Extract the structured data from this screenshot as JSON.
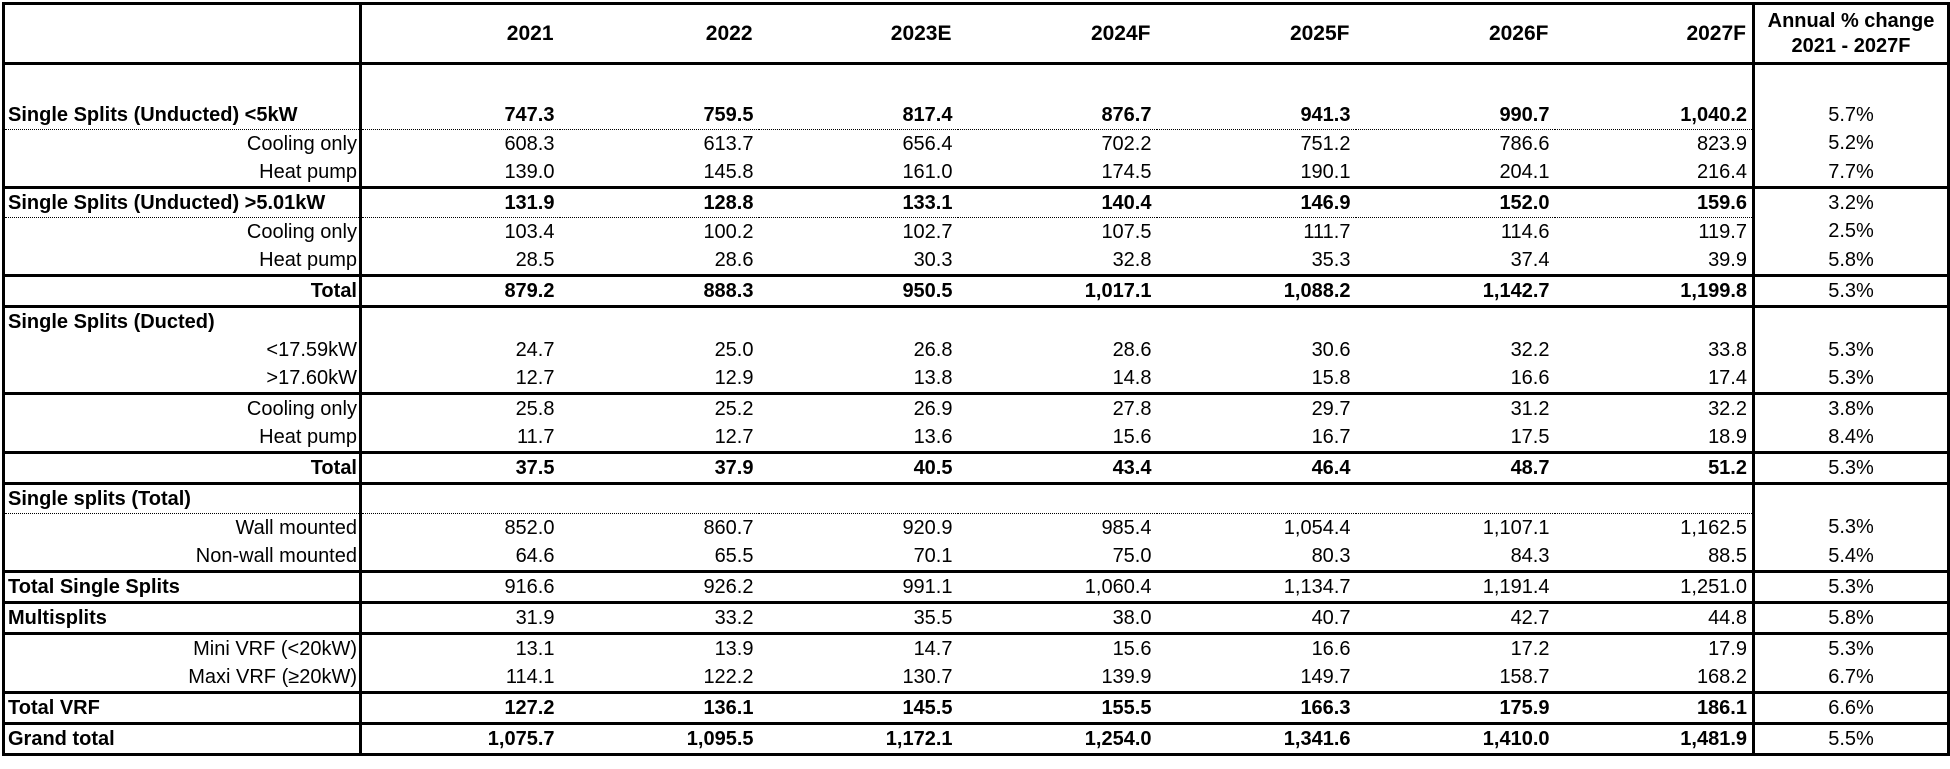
{
  "colors": {
    "background": "#ffffff",
    "text": "#000000",
    "border": "#000000"
  },
  "chart_data": {
    "type": "table",
    "year_columns": [
      "2021",
      "2022",
      "2023E",
      "2024F",
      "2025F",
      "2026F",
      "2027F"
    ],
    "change_column": {
      "line1": "Annual % change",
      "line2": "2021 - 2027F"
    },
    "corner_label": "",
    "rows": [
      {
        "label": "",
        "blank": true,
        "label_align": "left",
        "bold_label": false,
        "bold_values": false,
        "bottom_border": "none",
        "values": [
          "",
          "",
          "",
          "",
          "",
          "",
          ""
        ],
        "change": ""
      },
      {
        "label": "Single Splits (Unducted) <5kW",
        "label_align": "left",
        "bold_label": true,
        "bold_values": true,
        "bottom_border": "dotted",
        "values": [
          "747.3",
          "759.5",
          "817.4",
          "876.7",
          "941.3",
          "990.7",
          "1,040.2"
        ],
        "change": "5.7%"
      },
      {
        "label": "Cooling only",
        "label_align": "right",
        "bold_label": false,
        "bold_values": false,
        "bottom_border": "none",
        "values": [
          "608.3",
          "613.7",
          "656.4",
          "702.2",
          "751.2",
          "786.6",
          "823.9"
        ],
        "change": "5.2%"
      },
      {
        "label": "Heat pump",
        "label_align": "right",
        "bold_label": false,
        "bold_values": false,
        "bottom_border": "thick",
        "values": [
          "139.0",
          "145.8",
          "161.0",
          "174.5",
          "190.1",
          "204.1",
          "216.4"
        ],
        "change": "7.7%"
      },
      {
        "label": "Single Splits (Unducted) >5.01kW",
        "label_align": "left",
        "bold_label": true,
        "bold_values": true,
        "bottom_border": "dotted",
        "values": [
          "131.9",
          "128.8",
          "133.1",
          "140.4",
          "146.9",
          "152.0",
          "159.6"
        ],
        "change": "3.2%"
      },
      {
        "label": "Cooling only",
        "label_align": "right",
        "bold_label": false,
        "bold_values": false,
        "bottom_border": "none",
        "values": [
          "103.4",
          "100.2",
          "102.7",
          "107.5",
          "111.7",
          "114.6",
          "119.7"
        ],
        "change": "2.5%"
      },
      {
        "label": "Heat pump",
        "label_align": "right",
        "bold_label": false,
        "bold_values": false,
        "bottom_border": "thick",
        "values": [
          "28.5",
          "28.6",
          "30.3",
          "32.8",
          "35.3",
          "37.4",
          "39.9"
        ],
        "change": "5.8%"
      },
      {
        "label": "Total",
        "label_align": "right",
        "bold_label": true,
        "bold_values": true,
        "bottom_border": "thick",
        "values": [
          "879.2",
          "888.3",
          "950.5",
          "1,017.1",
          "1,088.2",
          "1,142.7",
          "1,199.8"
        ],
        "change": "5.3%"
      },
      {
        "label": "Single Splits (Ducted)",
        "label_align": "left",
        "bold_label": true,
        "bold_values": false,
        "bottom_border": "none",
        "values": [
          "",
          "",
          "",
          "",
          "",
          "",
          ""
        ],
        "change": ""
      },
      {
        "label": "<17.59kW",
        "label_align": "right",
        "bold_label": false,
        "bold_values": false,
        "bottom_border": "none",
        "values": [
          "24.7",
          "25.0",
          "26.8",
          "28.6",
          "30.6",
          "32.2",
          "33.8"
        ],
        "change": "5.3%"
      },
      {
        "label": ">17.60kW",
        "label_align": "right",
        "bold_label": false,
        "bold_values": false,
        "bottom_border": "thick",
        "values": [
          "12.7",
          "12.9",
          "13.8",
          "14.8",
          "15.8",
          "16.6",
          "17.4"
        ],
        "change": "5.3%"
      },
      {
        "label": "Cooling only",
        "label_align": "right",
        "bold_label": false,
        "bold_values": false,
        "bottom_border": "none",
        "values": [
          "25.8",
          "25.2",
          "26.9",
          "27.8",
          "29.7",
          "31.2",
          "32.2"
        ],
        "change": "3.8%"
      },
      {
        "label": "Heat pump",
        "label_align": "right",
        "bold_label": false,
        "bold_values": false,
        "bottom_border": "thick",
        "values": [
          "11.7",
          "12.7",
          "13.6",
          "15.6",
          "16.7",
          "17.5",
          "18.9"
        ],
        "change": "8.4%"
      },
      {
        "label": "Total",
        "label_align": "right",
        "bold_label": true,
        "bold_values": true,
        "bottom_border": "thick",
        "values": [
          "37.5",
          "37.9",
          "40.5",
          "43.4",
          "46.4",
          "48.7",
          "51.2"
        ],
        "change": "5.3%"
      },
      {
        "label": "Single splits (Total)",
        "label_align": "left",
        "bold_label": true,
        "bold_values": false,
        "bottom_border": "dotted",
        "values": [
          "",
          "",
          "",
          "",
          "",
          "",
          ""
        ],
        "change": ""
      },
      {
        "label": "Wall mounted",
        "label_align": "right",
        "bold_label": false,
        "bold_values": false,
        "bottom_border": "none",
        "values": [
          "852.0",
          "860.7",
          "920.9",
          "985.4",
          "1,054.4",
          "1,107.1",
          "1,162.5"
        ],
        "change": "5.3%"
      },
      {
        "label": "Non-wall mounted",
        "label_align": "right",
        "bold_label": false,
        "bold_values": false,
        "bottom_border": "thick",
        "values": [
          "64.6",
          "65.5",
          "70.1",
          "75.0",
          "80.3",
          "84.3",
          "88.5"
        ],
        "change": "5.4%"
      },
      {
        "label": "Total Single Splits",
        "label_align": "left",
        "bold_label": true,
        "bold_values": false,
        "bottom_border": "thick",
        "values": [
          "916.6",
          "926.2",
          "991.1",
          "1,060.4",
          "1,134.7",
          "1,191.4",
          "1,251.0"
        ],
        "change": "5.3%"
      },
      {
        "label": "Multisplits",
        "label_align": "left",
        "bold_label": true,
        "bold_values": false,
        "bottom_border": "thick",
        "values": [
          "31.9",
          "33.2",
          "35.5",
          "38.0",
          "40.7",
          "42.7",
          "44.8"
        ],
        "change": "5.8%"
      },
      {
        "label": "Mini VRF (<20kW)",
        "label_align": "right",
        "bold_label": false,
        "bold_values": false,
        "bottom_border": "none",
        "values": [
          "13.1",
          "13.9",
          "14.7",
          "15.6",
          "16.6",
          "17.2",
          "17.9"
        ],
        "change": "5.3%"
      },
      {
        "label": "Maxi VRF (≥20kW)",
        "label_align": "right",
        "bold_label": false,
        "bold_values": false,
        "bottom_border": "thick",
        "values": [
          "114.1",
          "122.2",
          "130.7",
          "139.9",
          "149.7",
          "158.7",
          "168.2"
        ],
        "change": "6.7%"
      },
      {
        "label": "Total VRF",
        "label_align": "left",
        "bold_label": true,
        "bold_values": true,
        "bottom_border": "thick",
        "values": [
          "127.2",
          "136.1",
          "145.5",
          "155.5",
          "166.3",
          "175.9",
          "186.1"
        ],
        "change": "6.6%"
      },
      {
        "label": "Grand total",
        "label_align": "left",
        "bold_label": true,
        "bold_values": true,
        "bottom_border": "none",
        "values": [
          "1,075.7",
          "1,095.5",
          "1,172.1",
          "1,254.0",
          "1,341.6",
          "1,410.0",
          "1,481.9"
        ],
        "change": "5.5%"
      }
    ]
  }
}
